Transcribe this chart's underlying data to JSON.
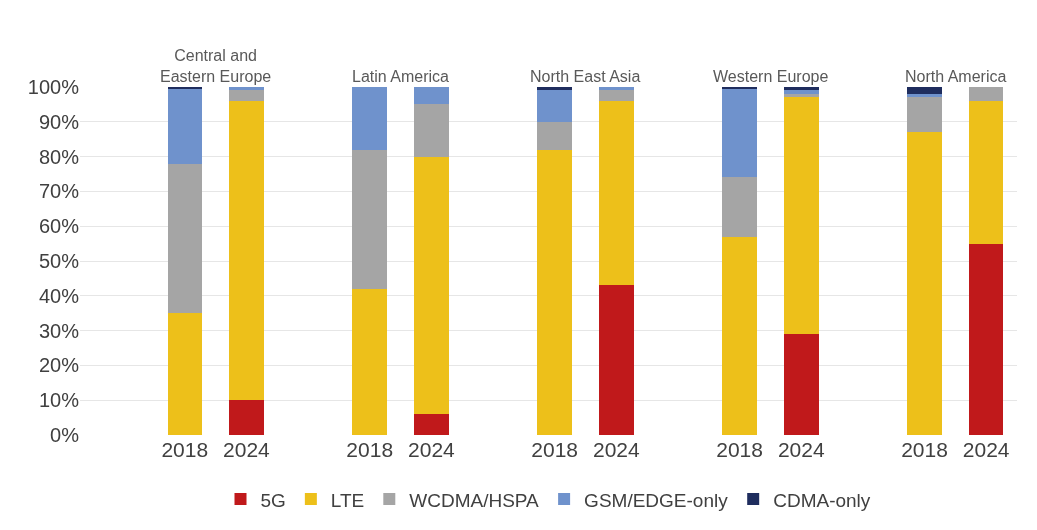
{
  "chart_data": {
    "type": "bar",
    "stacked": true,
    "categories": [
      "2018",
      "2024",
      null,
      "2018",
      "2024",
      null,
      "2018",
      "2024",
      null,
      "2018",
      "2024",
      null,
      "2018",
      "2024"
    ],
    "series": [
      {
        "name": "5G",
        "color": "#c0191b",
        "values": [
          0,
          10,
          null,
          0,
          6,
          null,
          0,
          43,
          null,
          0,
          29,
          null,
          0,
          55
        ]
      },
      {
        "name": "LTE",
        "color": "#edc01a",
        "values": [
          35,
          86,
          null,
          42,
          74,
          null,
          82,
          53,
          null,
          57,
          68,
          null,
          87,
          41
        ]
      },
      {
        "name": "WCDMA/HSPA",
        "color": "#a5a5a5",
        "values": [
          43,
          3,
          null,
          40,
          15,
          null,
          8,
          3,
          null,
          17,
          1,
          null,
          10,
          4
        ]
      },
      {
        "name": "GSM/EDGE-only",
        "color": "#6f92cc",
        "values": [
          21.5,
          1,
          null,
          18,
          5,
          null,
          9,
          1,
          null,
          25.5,
          1,
          null,
          1,
          0
        ]
      },
      {
        "name": "CDMA-only",
        "color": "#1f2d5e",
        "values": [
          0.5,
          0,
          null,
          0,
          0,
          null,
          1,
          0,
          null,
          0.5,
          1,
          null,
          2,
          0
        ]
      }
    ],
    "annotations": [
      "Central and\nEastern Europe",
      "Latin America",
      "North East Asia",
      "Western Europe",
      "North America"
    ],
    "ylim": [
      0,
      100
    ],
    "yticks": [
      {
        "value": 0,
        "label": "0%"
      },
      {
        "value": 10,
        "label": "10%"
      },
      {
        "value": 20,
        "label": "20%"
      },
      {
        "value": 30,
        "label": "30%"
      },
      {
        "value": 40,
        "label": "40%"
      },
      {
        "value": 50,
        "label": "50%"
      },
      {
        "value": 60,
        "label": "60%"
      },
      {
        "value": 70,
        "label": "70%"
      },
      {
        "value": 80,
        "label": "80%"
      },
      {
        "value": 90,
        "label": "90%"
      },
      {
        "value": 100,
        "label": "100%"
      }
    ],
    "grid": "y",
    "legend": "bottom"
  }
}
